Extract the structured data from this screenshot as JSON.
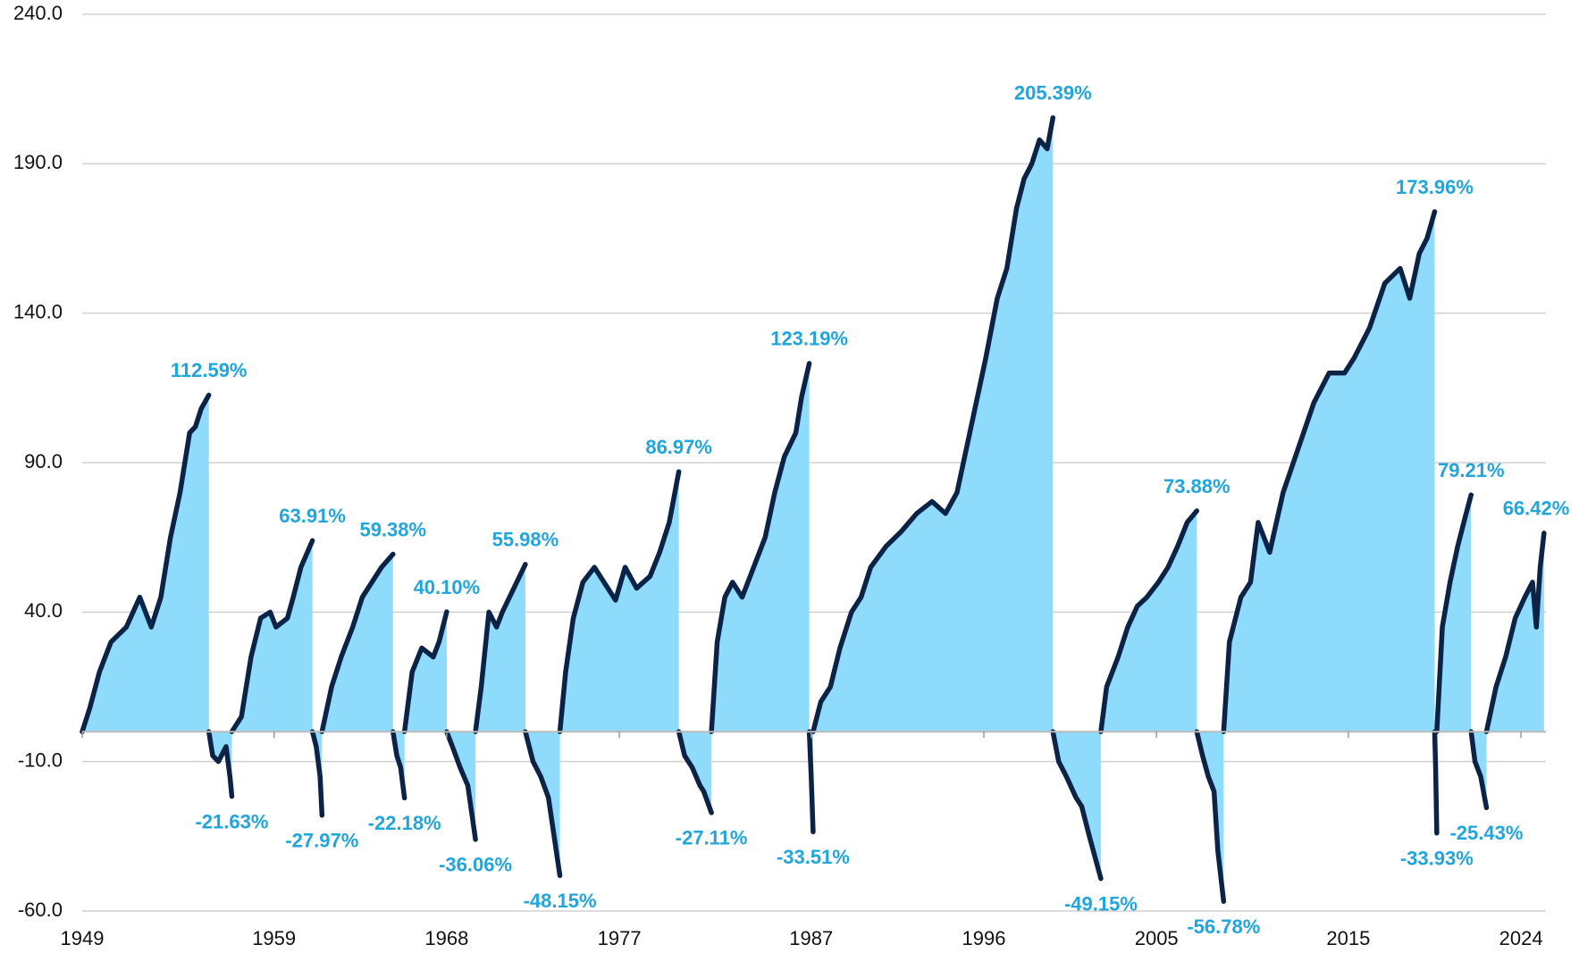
{
  "chart_data": {
    "type": "area",
    "line_color": "#0b2346",
    "fill_color": "#8fdbfc",
    "label_color": "#21a5de",
    "grid": true,
    "xlim": [
      1949,
      2025.3
    ],
    "xticks": [
      1949,
      1959,
      1968,
      1977,
      1987,
      1996,
      2005,
      2015,
      2024
    ],
    "ylim": [
      -60,
      240
    ],
    "yticks": [
      {
        "value": -60,
        "label": "-60.0"
      },
      {
        "value": -10,
        "label": "-10.0"
      },
      {
        "value": 40,
        "label": "40.0"
      },
      {
        "value": 90,
        "label": "90.0"
      },
      {
        "value": 140,
        "label": "140.0"
      },
      {
        "value": 190,
        "label": "190.0"
      },
      {
        "value": 240,
        "label": "240.0"
      }
    ],
    "series": [
      {
        "x": [
          1949.0,
          1949.4,
          1949.9,
          1950.5,
          1951.3,
          1952.0,
          1952.6,
          1953.1,
          1953.6,
          1954.1,
          1954.6,
          1954.9,
          1955.2,
          1955.6
        ],
        "values": [
          0,
          8,
          20,
          30,
          35,
          45,
          35,
          45,
          65,
          80,
          100,
          102,
          108,
          112.59
        ],
        "end_label": "112.59%"
      },
      {
        "x": [
          1955.6,
          1955.8,
          1956.1,
          1956.5,
          1956.7,
          1956.8
        ],
        "values": [
          0,
          -8,
          -10,
          -5,
          -15,
          -21.63
        ],
        "end_label": "-21.63%"
      },
      {
        "x": [
          1956.8,
          1957.3,
          1957.8,
          1958.3,
          1958.8,
          1959.1,
          1959.7,
          1960.0,
          1960.4,
          1961.0
        ],
        "values": [
          0,
          5,
          25,
          38,
          40,
          35,
          38,
          45,
          55,
          63.91
        ],
        "end_label": "63.91%"
      },
      {
        "x": [
          1961.0,
          1961.2,
          1961.4,
          1961.5
        ],
        "values": [
          0,
          -5,
          -15,
          -27.97
        ],
        "end_label": "-27.97%"
      },
      {
        "x": [
          1961.5,
          1962.0,
          1962.5,
          1963.1,
          1963.6,
          1964.1,
          1964.6,
          1965.2
        ],
        "values": [
          0,
          15,
          25,
          35,
          45,
          50,
          55,
          59.38
        ],
        "end_label": "59.38%"
      },
      {
        "x": [
          1965.2,
          1965.4,
          1965.6,
          1965.8
        ],
        "values": [
          0,
          -8,
          -12,
          -22.18
        ],
        "end_label": "-22.18%"
      },
      {
        "x": [
          1965.8,
          1966.2,
          1966.7,
          1967.3,
          1967.6,
          1968.0
        ],
        "values": [
          0,
          20,
          28,
          25,
          30,
          40.1
        ],
        "end_label": "40.10%"
      },
      {
        "x": [
          1968.0,
          1968.3,
          1968.7,
          1969.1,
          1969.5
        ],
        "values": [
          0,
          -5,
          -12,
          -18,
          -36.06
        ],
        "end_label": "-36.06%"
      },
      {
        "x": [
          1969.5,
          1969.8,
          1970.2,
          1970.6,
          1970.9,
          1971.5,
          1972.1
        ],
        "values": [
          0,
          15,
          40,
          35,
          40,
          48,
          55.98
        ],
        "end_label": "55.98%"
      },
      {
        "x": [
          1972.1,
          1972.5,
          1972.9,
          1973.3,
          1973.6,
          1973.9
        ],
        "values": [
          0,
          -10,
          -15,
          -22,
          -35,
          -48.15
        ],
        "end_label": "-48.15%"
      },
      {
        "x": [
          1973.9,
          1974.2,
          1974.6,
          1975.1,
          1975.7,
          1976.2,
          1976.8,
          1977.3,
          1977.9,
          1978.6,
          1979.1,
          1979.6,
          1980.1
        ],
        "values": [
          0,
          20,
          38,
          50,
          55,
          50,
          44,
          55,
          48,
          52,
          60,
          70,
          86.97
        ],
        "end_label": "86.97%"
      },
      {
        "x": [
          1980.1,
          1980.4,
          1980.8,
          1981.2,
          1981.4,
          1981.8
        ],
        "values": [
          0,
          -8,
          -12,
          -18,
          -20,
          -27.11
        ],
        "end_label": "-27.11%"
      },
      {
        "x": [
          1981.8,
          1982.1,
          1982.5,
          1982.9,
          1983.4,
          1984.0,
          1984.6,
          1985.1,
          1985.6,
          1986.2,
          1986.5,
          1986.9
        ],
        "values": [
          0,
          30,
          45,
          50,
          45,
          55,
          65,
          80,
          92,
          100,
          112,
          123.19
        ],
        "end_label": "123.19%"
      },
      {
        "x": [
          1986.9,
          1987.0,
          1987.1
        ],
        "values": [
          0,
          -15,
          -33.51
        ],
        "end_label": "-33.51%"
      },
      {
        "x": [
          1987.1,
          1987.5,
          1988.0,
          1988.5,
          1989.1,
          1989.6,
          1990.1,
          1990.9,
          1991.7,
          1992.5,
          1993.3,
          1994.0,
          1994.6,
          1995.1,
          1995.6,
          1996.1,
          1996.7,
          1997.2,
          1997.7,
          1998.1,
          1998.5,
          1998.9,
          1999.3,
          1999.6
        ],
        "values": [
          0,
          10,
          15,
          28,
          40,
          45,
          55,
          62,
          67,
          73,
          77,
          73,
          80,
          95,
          110,
          125,
          145,
          155,
          175,
          185,
          190,
          198,
          195,
          205.39
        ],
        "end_label": "205.39%"
      },
      {
        "x": [
          1999.6,
          1999.9,
          2000.3,
          2000.8,
          2001.1,
          2001.5,
          2002.1
        ],
        "values": [
          0,
          -10,
          -15,
          -22,
          -25,
          -35,
          -49.15
        ],
        "end_label": "-49.15%"
      },
      {
        "x": [
          2002.1,
          2002.4,
          2003.0,
          2003.5,
          2004.0,
          2004.5,
          2005.1,
          2005.6,
          2006.1,
          2006.6,
          2007.1
        ],
        "values": [
          0,
          15,
          25,
          35,
          42,
          45,
          50,
          55,
          62,
          70,
          73.88
        ],
        "end_label": "73.88%"
      },
      {
        "x": [
          2007.1,
          2007.4,
          2007.7,
          2008.0,
          2008.2,
          2008.5
        ],
        "values": [
          0,
          -8,
          -15,
          -20,
          -40,
          -56.78
        ],
        "end_label": "-56.78%"
      },
      {
        "x": [
          2008.5,
          2008.8,
          2009.4,
          2009.9,
          2010.3,
          2010.9,
          2011.6,
          2012.4,
          2013.2,
          2014.0,
          2014.8,
          2015.3,
          2016.1,
          2016.9,
          2017.7,
          2018.2,
          2018.7,
          2019.1,
          2019.5
        ],
        "values": [
          0,
          30,
          45,
          50,
          70,
          60,
          80,
          95,
          110,
          120,
          120,
          125,
          135,
          150,
          155,
          145,
          160,
          165,
          173.96
        ],
        "end_label": "173.96%"
      },
      {
        "x": [
          2019.5,
          2019.55,
          2019.61
        ],
        "values": [
          0,
          -12,
          -33.93
        ],
        "end_label": "-33.93%"
      },
      {
        "x": [
          2019.61,
          2019.9,
          2020.3,
          2020.7,
          2021.1,
          2021.4
        ],
        "values": [
          0,
          35,
          50,
          62,
          72,
          79.21
        ],
        "end_label": "79.21%"
      },
      {
        "x": [
          2021.4,
          2021.6,
          2021.9,
          2022.2
        ],
        "values": [
          0,
          -10,
          -15,
          -25.43
        ],
        "end_label": "-25.43%"
      },
      {
        "x": [
          2022.2,
          2022.7,
          2023.2,
          2023.7,
          2024.2,
          2024.6,
          2024.8,
          2025.0,
          2025.2
        ],
        "values": [
          0,
          15,
          25,
          38,
          45,
          50,
          35,
          55,
          66.42
        ],
        "end_label": "66.42%"
      }
    ]
  }
}
